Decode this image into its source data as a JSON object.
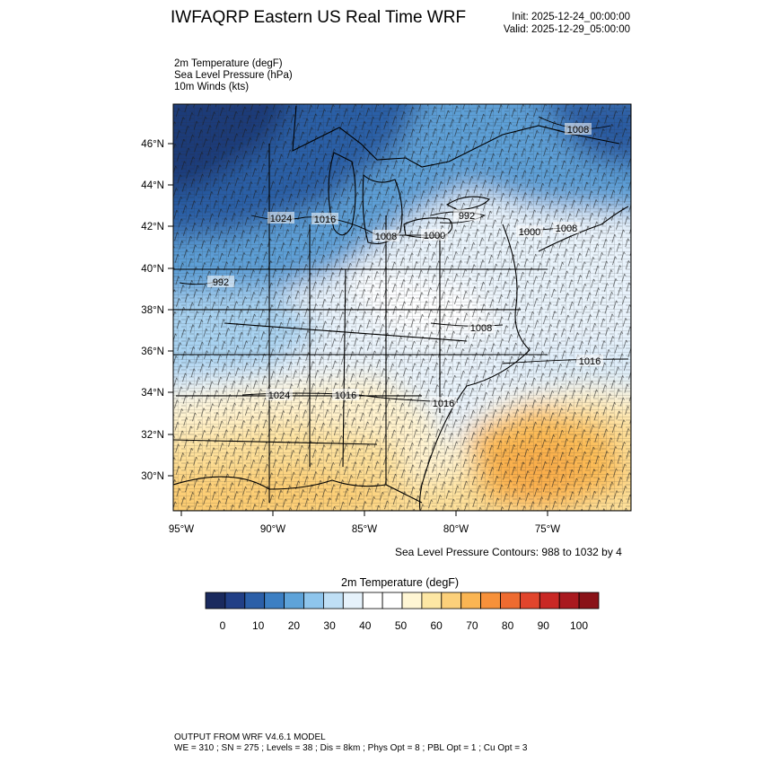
{
  "header": {
    "title": "IWFAQRP Eastern US Real Time WRF",
    "init": "Init: 2025-12-24_00:00:00",
    "valid": "Valid: 2025-12-29_05:00:00"
  },
  "fields": [
    "2m Temperature   (degF)",
    "Sea Level Pressure   (hPa)",
    "10m Winds   (kts)"
  ],
  "map": {
    "lat_labels": [
      "46°N",
      "44°N",
      "42°N",
      "40°N",
      "38°N",
      "36°N",
      "34°N",
      "32°N",
      "30°N"
    ],
    "lon_labels": [
      "95°W",
      "90°W",
      "85°W",
      "80°W",
      "75°W"
    ],
    "isobar_labels": [
      "1008",
      "992",
      "1024",
      "1016",
      "1008",
      "1000",
      "1000",
      "1008",
      "992",
      "1008",
      "1016",
      "1024",
      "1016",
      "1016"
    ]
  },
  "contour_note": "Sea Level Pressure Contours: 988 to 1032 by 4",
  "colorbar": {
    "title": "2m Temperature  (degF)",
    "labels": [
      "0",
      "10",
      "20",
      "30",
      "40",
      "50",
      "60",
      "70",
      "80",
      "90",
      "100"
    ],
    "colors": [
      "#1a2a5e",
      "#213f86",
      "#2b5fa8",
      "#3c7fc3",
      "#5ea3d9",
      "#8ec5ec",
      "#bfdff5",
      "#e6f2fb",
      "#ffffff",
      "#ffffff",
      "#fff6d4",
      "#fde7a4",
      "#fcd07a",
      "#fab553",
      "#f7913a",
      "#ee6b30",
      "#e1452c",
      "#c92825",
      "#a9191f",
      "#8a1218"
    ]
  },
  "footer": {
    "line1": "OUTPUT FROM WRF V4.6.1 MODEL",
    "line2": "WE = 310 ; SN = 275 ; Levels = 38 ; Dis = 8km ; Phys Opt = 8 ; PBL Opt = 1 ; Cu Opt = 3"
  }
}
